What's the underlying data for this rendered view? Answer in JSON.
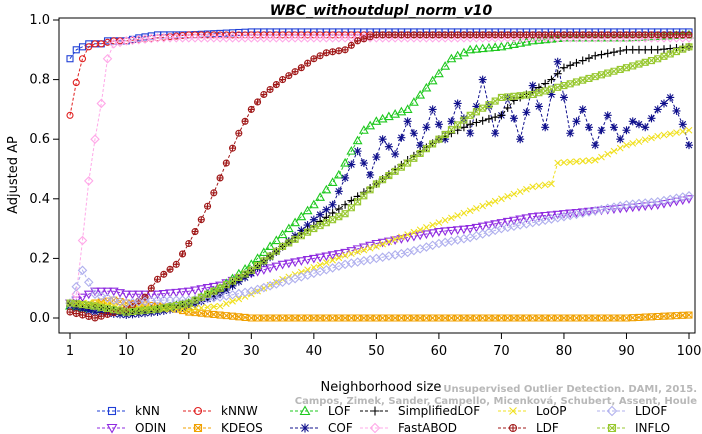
{
  "chart_data": {
    "type": "line",
    "title": "WBC_withoutdupl_norm_v10",
    "xlabel": "Neighborhood size",
    "ylabel": "Adjusted AP",
    "xlim": [
      1,
      100
    ],
    "ylim": [
      -0.02,
      1.0
    ],
    "x_ticks": [
      1,
      10,
      20,
      30,
      40,
      50,
      60,
      70,
      80,
      90,
      100
    ],
    "y_ticks": [
      0.0,
      0.2,
      0.4,
      0.6,
      0.8,
      1.0
    ],
    "x_tick_labels": [
      "1",
      "10",
      "20",
      "30",
      "40",
      "50",
      "60",
      "70",
      "80",
      "90",
      "100"
    ],
    "y_tick_labels": [
      "0.0",
      "0.2",
      "0.4",
      "0.6",
      "0.8",
      "1.0"
    ],
    "grid": false,
    "legend_position": "bottom",
    "series": [
      {
        "name": "kNN",
        "color": "#1f3fd6",
        "marker": "square",
        "points": [
          [
            1,
            0.87
          ],
          [
            2,
            0.9
          ],
          [
            3,
            0.91
          ],
          [
            4,
            0.92
          ],
          [
            5,
            0.92
          ],
          [
            6,
            0.92
          ],
          [
            7,
            0.93
          ],
          [
            8,
            0.93
          ],
          [
            10,
            0.93
          ],
          [
            12,
            0.94
          ],
          [
            15,
            0.95
          ],
          [
            20,
            0.95
          ],
          [
            30,
            0.96
          ],
          [
            40,
            0.96
          ],
          [
            60,
            0.96
          ],
          [
            80,
            0.96
          ],
          [
            100,
            0.96
          ]
        ]
      },
      {
        "name": "ODIN",
        "color": "#8f2be0",
        "marker": "triangle-down",
        "points": [
          [
            1,
            0.05
          ],
          [
            3,
            0.07
          ],
          [
            5,
            0.09
          ],
          [
            8,
            0.09
          ],
          [
            10,
            0.08
          ],
          [
            15,
            0.08
          ],
          [
            20,
            0.09
          ],
          [
            25,
            0.11
          ],
          [
            30,
            0.15
          ],
          [
            35,
            0.18
          ],
          [
            40,
            0.2
          ],
          [
            45,
            0.22
          ],
          [
            50,
            0.25
          ],
          [
            55,
            0.27
          ],
          [
            60,
            0.29
          ],
          [
            65,
            0.3
          ],
          [
            70,
            0.32
          ],
          [
            75,
            0.34
          ],
          [
            80,
            0.35
          ],
          [
            85,
            0.36
          ],
          [
            90,
            0.37
          ],
          [
            95,
            0.38
          ],
          [
            100,
            0.4
          ]
        ]
      },
      {
        "name": "kNNW",
        "color": "#e02020",
        "marker": "circle",
        "points": [
          [
            1,
            0.68
          ],
          [
            2,
            0.79
          ],
          [
            3,
            0.87
          ],
          [
            4,
            0.91
          ],
          [
            5,
            0.92
          ],
          [
            6,
            0.92
          ],
          [
            8,
            0.93
          ],
          [
            10,
            0.93
          ],
          [
            15,
            0.94
          ],
          [
            20,
            0.95
          ],
          [
            30,
            0.95
          ],
          [
            40,
            0.95
          ],
          [
            60,
            0.95
          ],
          [
            80,
            0.95
          ],
          [
            100,
            0.95
          ]
        ]
      },
      {
        "name": "KDEOS",
        "color": "#f0a000",
        "marker": "x-square",
        "points": [
          [
            1,
            0.05
          ],
          [
            3,
            0.03
          ],
          [
            5,
            0.05
          ],
          [
            8,
            0.06
          ],
          [
            10,
            0.05
          ],
          [
            15,
            0.04
          ],
          [
            18,
            0.03
          ],
          [
            20,
            0.02
          ],
          [
            25,
            0.01
          ],
          [
            30,
            0.0
          ],
          [
            40,
            0.0
          ],
          [
            50,
            0.0
          ],
          [
            60,
            0.0
          ],
          [
            70,
            0.0
          ],
          [
            80,
            0.0
          ],
          [
            90,
            0.0
          ],
          [
            100,
            0.01
          ]
        ]
      },
      {
        "name": "LOF",
        "color": "#1ec81e",
        "marker": "triangle",
        "points": [
          [
            1,
            0.04
          ],
          [
            5,
            0.03
          ],
          [
            10,
            0.02
          ],
          [
            15,
            0.03
          ],
          [
            20,
            0.05
          ],
          [
            25,
            0.1
          ],
          [
            30,
            0.18
          ],
          [
            35,
            0.28
          ],
          [
            40,
            0.38
          ],
          [
            42,
            0.43
          ],
          [
            44,
            0.48
          ],
          [
            46,
            0.56
          ],
          [
            48,
            0.63
          ],
          [
            50,
            0.66
          ],
          [
            55,
            0.7
          ],
          [
            60,
            0.82
          ],
          [
            62,
            0.87
          ],
          [
            65,
            0.9
          ],
          [
            70,
            0.91
          ],
          [
            75,
            0.93
          ],
          [
            80,
            0.94
          ],
          [
            90,
            0.94
          ],
          [
            100,
            0.95
          ]
        ]
      },
      {
        "name": "COF",
        "color": "#10108c",
        "marker": "asterisk",
        "points": [
          [
            1,
            0.04
          ],
          [
            5,
            0.02
          ],
          [
            10,
            0.01
          ],
          [
            15,
            0.02
          ],
          [
            20,
            0.04
          ],
          [
            25,
            0.08
          ],
          [
            30,
            0.15
          ],
          [
            35,
            0.24
          ],
          [
            40,
            0.33
          ],
          [
            43,
            0.38
          ],
          [
            45,
            0.47
          ],
          [
            47,
            0.56
          ],
          [
            49,
            0.48
          ],
          [
            51,
            0.6
          ],
          [
            53,
            0.55
          ],
          [
            55,
            0.66
          ],
          [
            57,
            0.58
          ],
          [
            59,
            0.7
          ],
          [
            61,
            0.6
          ],
          [
            63,
            0.72
          ],
          [
            65,
            0.62
          ],
          [
            67,
            0.8
          ],
          [
            69,
            0.62
          ],
          [
            71,
            0.74
          ],
          [
            73,
            0.6
          ],
          [
            75,
            0.78
          ],
          [
            77,
            0.64
          ],
          [
            79,
            0.86
          ],
          [
            81,
            0.62
          ],
          [
            83,
            0.7
          ],
          [
            85,
            0.58
          ],
          [
            87,
            0.68
          ],
          [
            89,
            0.6
          ],
          [
            91,
            0.66
          ],
          [
            93,
            0.64
          ],
          [
            95,
            0.7
          ],
          [
            97,
            0.74
          ],
          [
            99,
            0.65
          ],
          [
            100,
            0.58
          ]
        ]
      },
      {
        "name": "SimplifiedLOF",
        "color": "#000000",
        "marker": "plus",
        "points": [
          [
            1,
            0.05
          ],
          [
            5,
            0.04
          ],
          [
            10,
            0.02
          ],
          [
            15,
            0.03
          ],
          [
            20,
            0.05
          ],
          [
            25,
            0.09
          ],
          [
            30,
            0.16
          ],
          [
            35,
            0.24
          ],
          [
            40,
            0.31
          ],
          [
            45,
            0.38
          ],
          [
            50,
            0.45
          ],
          [
            55,
            0.53
          ],
          [
            60,
            0.6
          ],
          [
            65,
            0.65
          ],
          [
            70,
            0.68
          ],
          [
            72,
            0.73
          ],
          [
            75,
            0.76
          ],
          [
            78,
            0.8
          ],
          [
            80,
            0.84
          ],
          [
            85,
            0.88
          ],
          [
            90,
            0.9
          ],
          [
            95,
            0.9
          ],
          [
            100,
            0.91
          ]
        ]
      },
      {
        "name": "FastABOD",
        "color": "#ffa8e8",
        "marker": "diamond",
        "points": [
          [
            1,
            0.05
          ],
          [
            2,
            0.08
          ],
          [
            3,
            0.26
          ],
          [
            4,
            0.46
          ],
          [
            5,
            0.6
          ],
          [
            6,
            0.72
          ],
          [
            7,
            0.87
          ],
          [
            8,
            0.92
          ],
          [
            10,
            0.93
          ],
          [
            15,
            0.94
          ],
          [
            20,
            0.94
          ],
          [
            30,
            0.94
          ],
          [
            40,
            0.94
          ],
          [
            60,
            0.94
          ],
          [
            80,
            0.94
          ],
          [
            100,
            0.94
          ]
        ]
      },
      {
        "name": "LoOP",
        "color": "#f0e020",
        "marker": "x",
        "points": [
          [
            1,
            0.05
          ],
          [
            5,
            0.05
          ],
          [
            10,
            0.04
          ],
          [
            15,
            0.03
          ],
          [
            20,
            0.03
          ],
          [
            25,
            0.04
          ],
          [
            30,
            0.08
          ],
          [
            35,
            0.13
          ],
          [
            40,
            0.17
          ],
          [
            45,
            0.21
          ],
          [
            50,
            0.24
          ],
          [
            55,
            0.28
          ],
          [
            60,
            0.32
          ],
          [
            65,
            0.36
          ],
          [
            70,
            0.4
          ],
          [
            75,
            0.44
          ],
          [
            78,
            0.45
          ],
          [
            79,
            0.52
          ],
          [
            85,
            0.53
          ],
          [
            88,
            0.56
          ],
          [
            90,
            0.58
          ],
          [
            95,
            0.61
          ],
          [
            100,
            0.63
          ]
        ]
      },
      {
        "name": "LDF",
        "color": "#a01818",
        "marker": "circle-plus",
        "points": [
          [
            1,
            0.02
          ],
          [
            5,
            0.0
          ],
          [
            10,
            0.03
          ],
          [
            13,
            0.07
          ],
          [
            15,
            0.13
          ],
          [
            18,
            0.18
          ],
          [
            20,
            0.25
          ],
          [
            22,
            0.33
          ],
          [
            24,
            0.42
          ],
          [
            26,
            0.52
          ],
          [
            28,
            0.62
          ],
          [
            30,
            0.7
          ],
          [
            32,
            0.75
          ],
          [
            35,
            0.8
          ],
          [
            38,
            0.84
          ],
          [
            40,
            0.87
          ],
          [
            42,
            0.89
          ],
          [
            45,
            0.9
          ],
          [
            47,
            0.93
          ],
          [
            50,
            0.95
          ],
          [
            60,
            0.95
          ],
          [
            80,
            0.95
          ],
          [
            100,
            0.95
          ]
        ]
      },
      {
        "name": "LDOF",
        "color": "#b0b0ee",
        "marker": "diamond",
        "points": [
          [
            1,
            0.05
          ],
          [
            3,
            0.16
          ],
          [
            5,
            0.08
          ],
          [
            8,
            0.06
          ],
          [
            10,
            0.05
          ],
          [
            15,
            0.06
          ],
          [
            20,
            0.06
          ],
          [
            25,
            0.07
          ],
          [
            30,
            0.09
          ],
          [
            35,
            0.12
          ],
          [
            40,
            0.15
          ],
          [
            45,
            0.18
          ],
          [
            50,
            0.2
          ],
          [
            55,
            0.22
          ],
          [
            60,
            0.25
          ],
          [
            65,
            0.27
          ],
          [
            70,
            0.3
          ],
          [
            75,
            0.32
          ],
          [
            80,
            0.34
          ],
          [
            85,
            0.36
          ],
          [
            90,
            0.38
          ],
          [
            95,
            0.39
          ],
          [
            100,
            0.41
          ]
        ]
      },
      {
        "name": "INFLO",
        "color": "#98c830",
        "marker": "x-square",
        "points": [
          [
            1,
            0.05
          ],
          [
            5,
            0.04
          ],
          [
            10,
            0.02
          ],
          [
            15,
            0.03
          ],
          [
            20,
            0.05
          ],
          [
            25,
            0.1
          ],
          [
            30,
            0.16
          ],
          [
            35,
            0.24
          ],
          [
            40,
            0.3
          ],
          [
            45,
            0.35
          ],
          [
            50,
            0.45
          ],
          [
            55,
            0.52
          ],
          [
            60,
            0.6
          ],
          [
            65,
            0.68
          ],
          [
            70,
            0.74
          ],
          [
            75,
            0.75
          ],
          [
            80,
            0.78
          ],
          [
            85,
            0.81
          ],
          [
            90,
            0.84
          ],
          [
            95,
            0.87
          ],
          [
            100,
            0.91
          ]
        ]
      }
    ]
  },
  "watermark": {
    "line1": "Unsupervised Outlier Detection. DAMI, 2015.",
    "line2": "Campos, Zimek, Sander, Campello, Micenková, Schubert, Assent, Houle"
  }
}
